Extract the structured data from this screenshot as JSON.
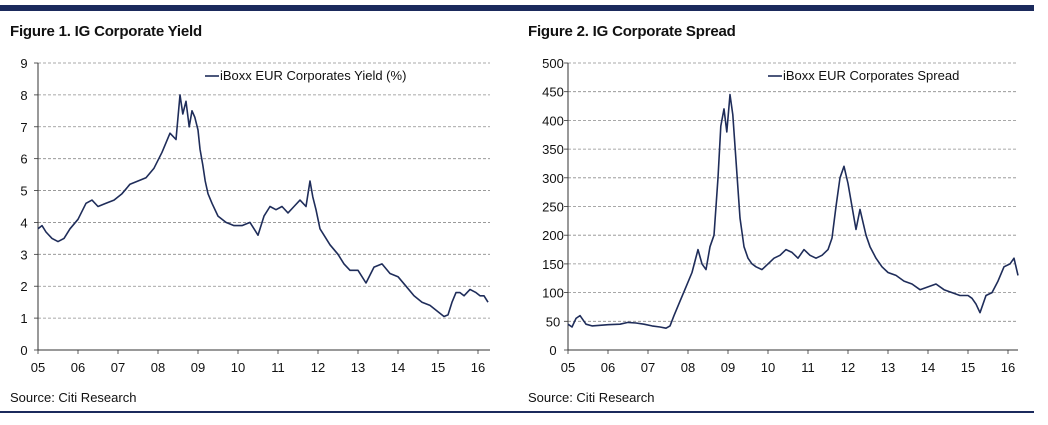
{
  "colors": {
    "brand": "#1b2a5c",
    "line": "#1f2d5a",
    "grid": "#8c8c8c"
  },
  "chart_data": [
    {
      "type": "line",
      "title": "Figure 1. IG Corporate Yield",
      "source": "Source: Citi Research",
      "legend": "iBoxx EUR Corporates Yield (%)",
      "x_ticks": [
        "05",
        "06",
        "07",
        "08",
        "09",
        "10",
        "11",
        "12",
        "13",
        "14",
        "15",
        "16"
      ],
      "xlim": [
        2005.0,
        2016.3
      ],
      "ylim": [
        0,
        9
      ],
      "y_ticks": [
        "0",
        "1",
        "2",
        "3",
        "4",
        "5",
        "6",
        "7",
        "8",
        "9"
      ],
      "series": [
        {
          "name": "iBoxx EUR Corporates Yield (%)",
          "x": [
            2005.0,
            2005.1,
            2005.2,
            2005.35,
            2005.5,
            2005.65,
            2005.8,
            2006.0,
            2006.2,
            2006.35,
            2006.5,
            2006.7,
            2006.9,
            2007.1,
            2007.3,
            2007.5,
            2007.7,
            2007.9,
            2008.1,
            2008.3,
            2008.45,
            2008.55,
            2008.62,
            2008.7,
            2008.78,
            2008.85,
            2008.92,
            2009.0,
            2009.05,
            2009.12,
            2009.18,
            2009.25,
            2009.35,
            2009.5,
            2009.7,
            2009.9,
            2010.1,
            2010.3,
            2010.5,
            2010.65,
            2010.8,
            2010.95,
            2011.1,
            2011.25,
            2011.4,
            2011.55,
            2011.7,
            2011.8,
            2011.87,
            2011.95,
            2012.05,
            2012.15,
            2012.3,
            2012.5,
            2012.65,
            2012.8,
            2013.0,
            2013.2,
            2013.4,
            2013.6,
            2013.8,
            2014.0,
            2014.2,
            2014.4,
            2014.6,
            2014.8,
            2015.0,
            2015.15,
            2015.25,
            2015.35,
            2015.45,
            2015.55,
            2015.65,
            2015.8,
            2015.95,
            2016.05,
            2016.15,
            2016.25
          ],
          "values": [
            3.8,
            3.9,
            3.7,
            3.5,
            3.4,
            3.5,
            3.8,
            4.1,
            4.6,
            4.7,
            4.5,
            4.6,
            4.7,
            4.9,
            5.2,
            5.3,
            5.4,
            5.7,
            6.2,
            6.8,
            6.6,
            8.0,
            7.4,
            7.8,
            7.0,
            7.5,
            7.3,
            6.9,
            6.3,
            5.8,
            5.3,
            4.9,
            4.6,
            4.2,
            4.0,
            3.9,
            3.9,
            4.0,
            3.6,
            4.2,
            4.5,
            4.4,
            4.5,
            4.3,
            4.5,
            4.7,
            4.5,
            5.3,
            4.8,
            4.4,
            3.8,
            3.6,
            3.3,
            3.0,
            2.7,
            2.5,
            2.5,
            2.1,
            2.6,
            2.7,
            2.4,
            2.3,
            2.0,
            1.7,
            1.5,
            1.4,
            1.2,
            1.05,
            1.1,
            1.5,
            1.8,
            1.8,
            1.7,
            1.9,
            1.8,
            1.7,
            1.7,
            1.5
          ]
        }
      ]
    },
    {
      "type": "line",
      "title": "Figure 2. IG Corporate Spread",
      "source": "Source: Citi Research",
      "legend": "iBoxx EUR Corporates Spread",
      "x_ticks": [
        "05",
        "06",
        "07",
        "08",
        "09",
        "10",
        "11",
        "12",
        "13",
        "14",
        "15",
        "16"
      ],
      "xlim": [
        2005.0,
        2016.25
      ],
      "ylim": [
        0,
        500
      ],
      "y_ticks": [
        "0",
        "50",
        "100",
        "150",
        "200",
        "250",
        "300",
        "350",
        "400",
        "450",
        "500"
      ],
      "series": [
        {
          "name": "iBoxx EUR Corporates Spread",
          "x": [
            2005.0,
            2005.1,
            2005.2,
            2005.3,
            2005.45,
            2005.6,
            2005.8,
            2006.0,
            2006.3,
            2006.5,
            2006.7,
            2006.9,
            2007.1,
            2007.3,
            2007.45,
            2007.55,
            2007.65,
            2007.8,
            2007.95,
            2008.1,
            2008.25,
            2008.35,
            2008.45,
            2008.55,
            2008.65,
            2008.75,
            2008.82,
            2008.9,
            2008.97,
            2009.05,
            2009.12,
            2009.2,
            2009.3,
            2009.4,
            2009.5,
            2009.6,
            2009.7,
            2009.85,
            2010.0,
            2010.15,
            2010.3,
            2010.45,
            2010.6,
            2010.75,
            2010.9,
            2011.05,
            2011.2,
            2011.35,
            2011.5,
            2011.6,
            2011.7,
            2011.8,
            2011.9,
            2012.0,
            2012.1,
            2012.2,
            2012.3,
            2012.45,
            2012.55,
            2012.7,
            2012.85,
            2013.0,
            2013.2,
            2013.4,
            2013.6,
            2013.8,
            2014.0,
            2014.2,
            2014.4,
            2014.6,
            2014.8,
            2015.0,
            2015.1,
            2015.2,
            2015.3,
            2015.45,
            2015.6,
            2015.75,
            2015.9,
            2016.05,
            2016.15,
            2016.25
          ],
          "values": [
            45,
            40,
            55,
            60,
            45,
            42,
            43,
            44,
            45,
            48,
            47,
            45,
            42,
            40,
            38,
            42,
            60,
            85,
            110,
            135,
            175,
            150,
            140,
            180,
            200,
            300,
            390,
            420,
            380,
            445,
            410,
            330,
            230,
            180,
            160,
            150,
            145,
            140,
            150,
            160,
            165,
            175,
            170,
            160,
            175,
            165,
            160,
            165,
            175,
            195,
            250,
            300,
            320,
            290,
            250,
            210,
            245,
            200,
            180,
            160,
            145,
            135,
            130,
            120,
            115,
            105,
            110,
            115,
            105,
            100,
            95,
            95,
            90,
            80,
            65,
            95,
            100,
            120,
            145,
            150,
            160,
            130
          ]
        }
      ]
    }
  ]
}
